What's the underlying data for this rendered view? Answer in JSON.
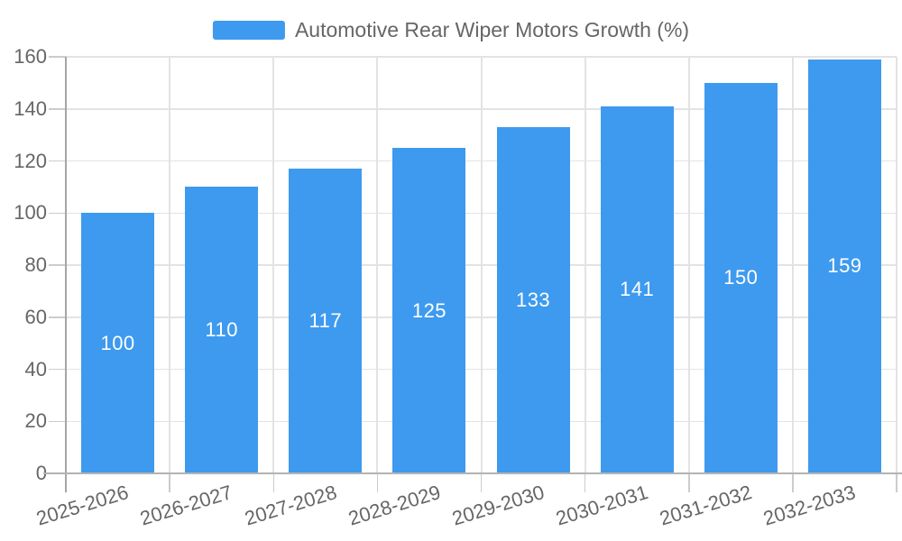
{
  "legend": {
    "series_label": "Automotive Rear Wiper Motors Growth (%)"
  },
  "colors": {
    "bar": "#3e9aee",
    "bar_label": "#ffffff",
    "grid": "#e3e3e3",
    "tick": "#cccccc",
    "y_axis_line": "#a6a6a6",
    "x_axis_line": "#b3b3b3",
    "axis_text": "#666666",
    "legend_text": "#666666",
    "background": "#ffffff"
  },
  "chart_data": {
    "type": "bar",
    "title": "",
    "series_name": "Automotive Rear Wiper Motors Growth (%)",
    "categories": [
      "2025-2026",
      "2026-2027",
      "2027-2028",
      "2028-2029",
      "2029-2030",
      "2030-2031",
      "2031-2032",
      "2032-2033"
    ],
    "values": [
      100,
      110,
      117,
      125,
      133,
      141,
      150,
      159
    ],
    "ylim": [
      0,
      160
    ],
    "ytick_step": 20,
    "ytick_labels": [
      "0",
      "20",
      "40",
      "60",
      "80",
      "100",
      "120",
      "140",
      "160"
    ],
    "xlabel": "",
    "ylabel": "",
    "grid": true,
    "legend_position": "top",
    "value_labels": "inside-center",
    "x_label_rotation_deg": -17
  }
}
